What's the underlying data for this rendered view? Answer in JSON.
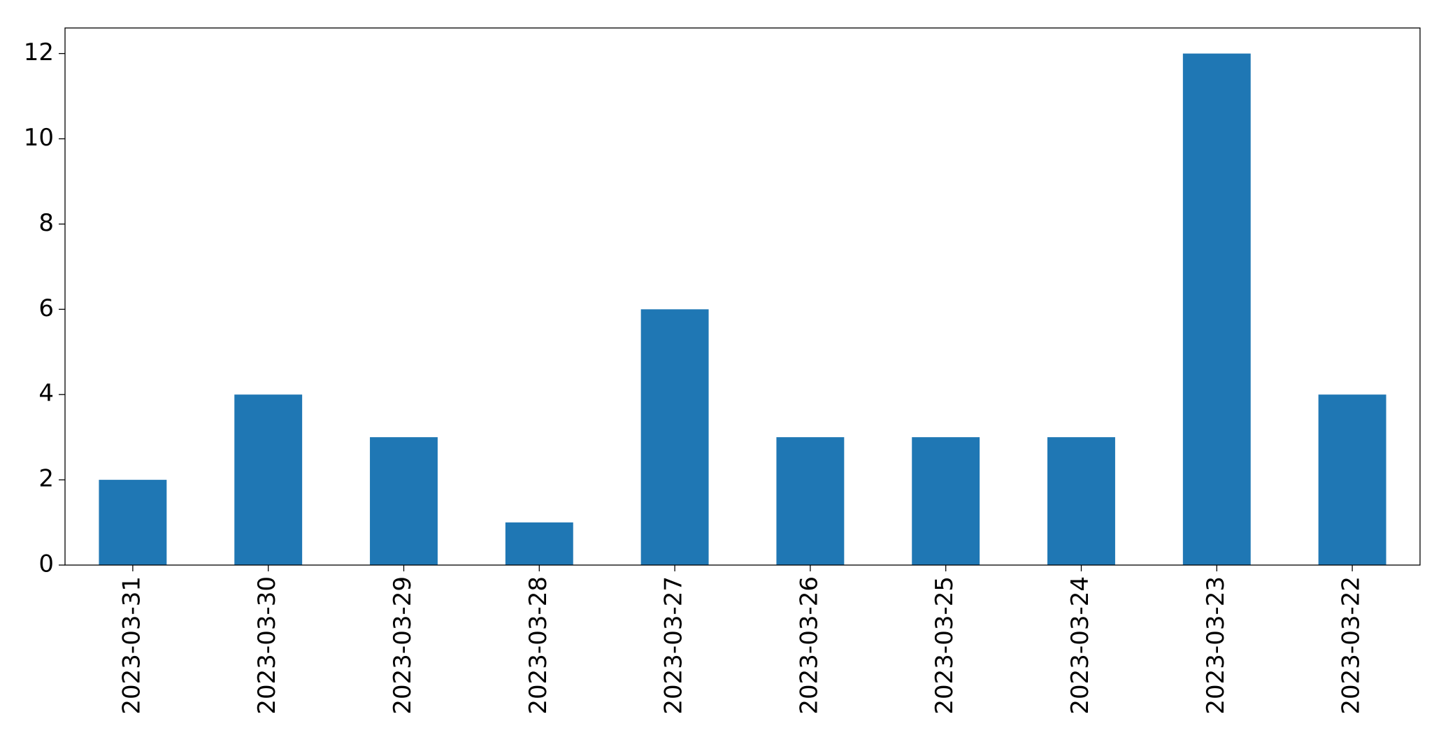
{
  "chart_data": {
    "type": "bar",
    "categories": [
      "2023-03-31",
      "2023-03-30",
      "2023-03-29",
      "2023-03-28",
      "2023-03-27",
      "2023-03-26",
      "2023-03-25",
      "2023-03-24",
      "2023-03-23",
      "2023-03-22"
    ],
    "values": [
      2,
      4,
      3,
      1,
      6,
      3,
      3,
      3,
      12,
      4
    ],
    "color": "#1f77b4",
    "ylim": [
      0,
      12.6
    ],
    "yticks": [
      0,
      2,
      4,
      6,
      8,
      10,
      12
    ],
    "grid": false
  }
}
